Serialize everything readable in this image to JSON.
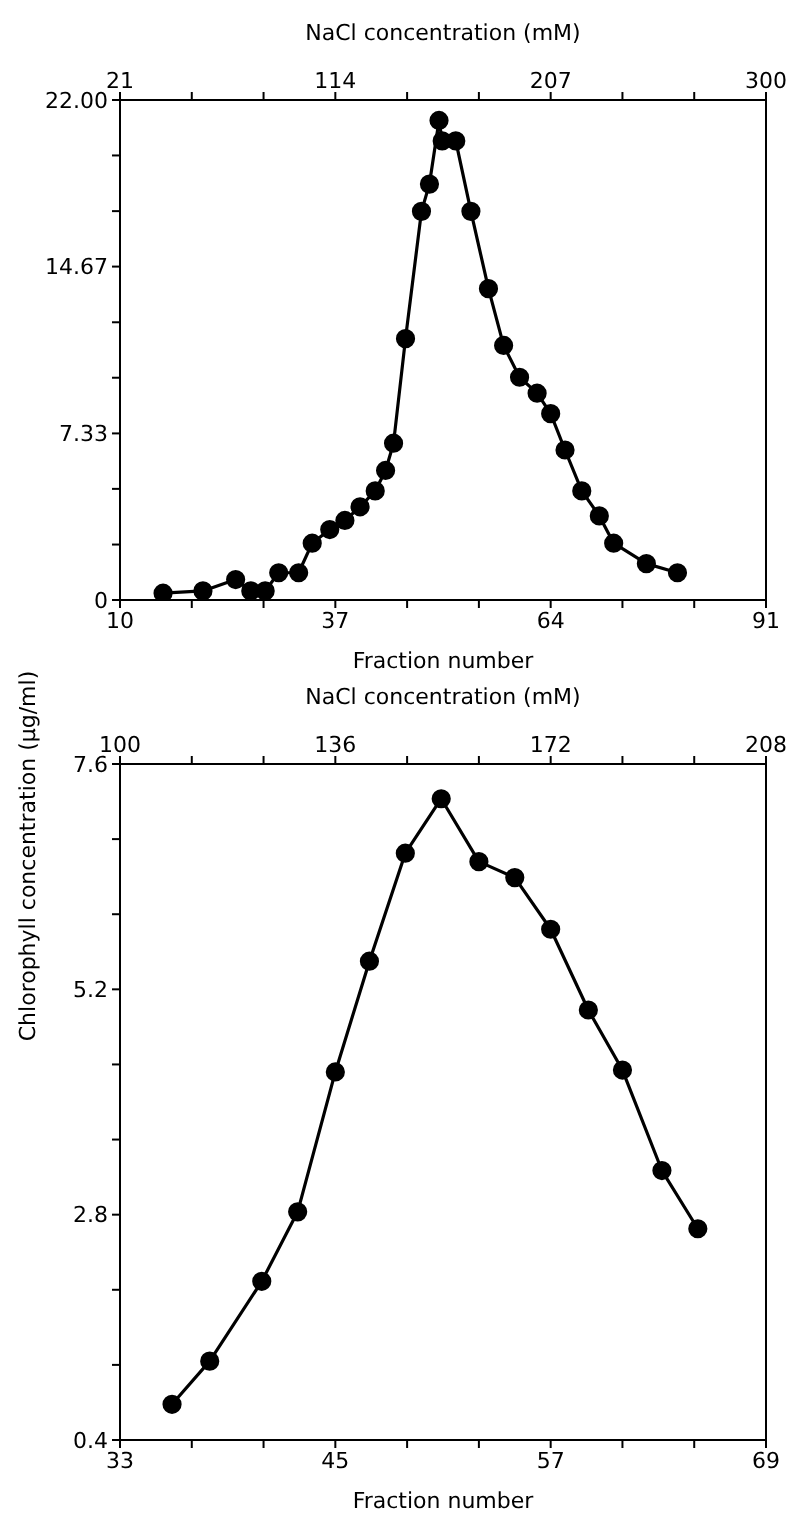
{
  "chart_data": [
    {
      "type": "line",
      "xlabel": "Fraction number",
      "x2label": "NaCl concentration (mM)",
      "ylabel": "Chlorophyll concentration (µg/ml)",
      "xlim": [
        10,
        91
      ],
      "xticks": [
        10,
        {
          "value": 19,
          "label": null
        },
        {
          "value": 28,
          "label": null
        },
        37,
        {
          "value": 46,
          "label": null
        },
        {
          "value": 55,
          "label": null
        },
        64,
        {
          "value": 73,
          "label": null
        },
        {
          "value": 82,
          "label": null
        },
        91
      ],
      "x2lim": [
        21,
        300
      ],
      "x2ticks": [
        21,
        {
          "value": 52,
          "label": null
        },
        {
          "value": 83,
          "label": null
        },
        114,
        {
          "value": 145,
          "label": null
        },
        {
          "value": 176,
          "label": null
        },
        207,
        {
          "value": 238,
          "label": null
        },
        {
          "value": 269,
          "label": null
        },
        300
      ],
      "ylim": [
        0,
        22
      ],
      "yticks": [
        0,
        {
          "value": 2.44,
          "label": null
        },
        {
          "value": 4.89,
          "label": null
        },
        {
          "value": 7.33,
          "label": "7.33"
        },
        {
          "value": 9.78,
          "label": null
        },
        {
          "value": 12.22,
          "label": null
        },
        {
          "value": 14.67,
          "label": "14.67"
        },
        {
          "value": 17.11,
          "label": null
        },
        {
          "value": 19.56,
          "label": null
        },
        {
          "value": 22,
          "label": "22.00"
        }
      ],
      "grid": false,
      "legend": false,
      "marker": "circle",
      "line_style": "solid",
      "series": [
        {
          "color": "#000000",
          "x": [
            15.4,
            20.4,
            24.5,
            26.4,
            28.2,
            29.9,
            32.4,
            34.1,
            36.3,
            38.2,
            40.1,
            42,
            43.3,
            44.3,
            45.8,
            47.8,
            48.8,
            50,
            50.4,
            52.1,
            54,
            56.2,
            58.1,
            60.1,
            62.3,
            64,
            65.8,
            67.9,
            70.1,
            71.9,
            76,
            79.9
          ],
          "values": [
            0.3,
            0.4,
            0.9,
            0.4,
            0.4,
            1.2,
            1.2,
            2.5,
            3.1,
            3.5,
            4.1,
            4.8,
            5.7,
            6.9,
            11.5,
            17.1,
            18.3,
            21.1,
            20.2,
            20.2,
            17.1,
            13.7,
            11.2,
            9.8,
            9.1,
            8.2,
            6.6,
            4.8,
            3.7,
            2.5,
            1.6,
            1.2
          ]
        }
      ]
    },
    {
      "type": "line",
      "xlabel": "Fraction number",
      "x2label": "NaCl concentration (mM)",
      "xlim": [
        33,
        69
      ],
      "xticks": [
        33,
        {
          "value": 37,
          "label": null
        },
        {
          "value": 41,
          "label": null
        },
        45,
        {
          "value": 49,
          "label": null
        },
        {
          "value": 53,
          "label": null
        },
        57,
        {
          "value": 61,
          "label": null
        },
        {
          "value": 65,
          "label": null
        },
        69
      ],
      "x2lim": [
        100,
        208
      ],
      "x2ticks": [
        100,
        {
          "value": 112,
          "label": null
        },
        {
          "value": 124,
          "label": null
        },
        136,
        {
          "value": 148,
          "label": null
        },
        {
          "value": 160,
          "label": null
        },
        172,
        {
          "value": 184,
          "label": null
        },
        {
          "value": 196,
          "label": null
        },
        208
      ],
      "ylim": [
        0.4,
        7.6
      ],
      "yticks": [
        0.4,
        {
          "value": 1.2,
          "label": null
        },
        {
          "value": 2,
          "label": null
        },
        2.8,
        {
          "value": 3.6,
          "label": null
        },
        {
          "value": 4.4,
          "label": null
        },
        5.2,
        {
          "value": 6,
          "label": null
        },
        {
          "value": 6.8,
          "label": null
        },
        7.6
      ],
      "grid": false,
      "legend": false,
      "marker": "circle",
      "line_style": "solid",
      "series": [
        {
          "color": "#000000",
          "x": [
            35.9,
            38,
            40.9,
            42.9,
            45,
            46.9,
            48.9,
            50.9,
            53,
            55,
            57,
            59.1,
            61,
            63.2,
            65.2
          ],
          "values": [
            0.78,
            1.24,
            2.09,
            2.83,
            4.32,
            5.5,
            6.65,
            7.23,
            6.56,
            6.39,
            5.84,
            4.98,
            4.34,
            3.27,
            2.65
          ]
        }
      ]
    }
  ]
}
